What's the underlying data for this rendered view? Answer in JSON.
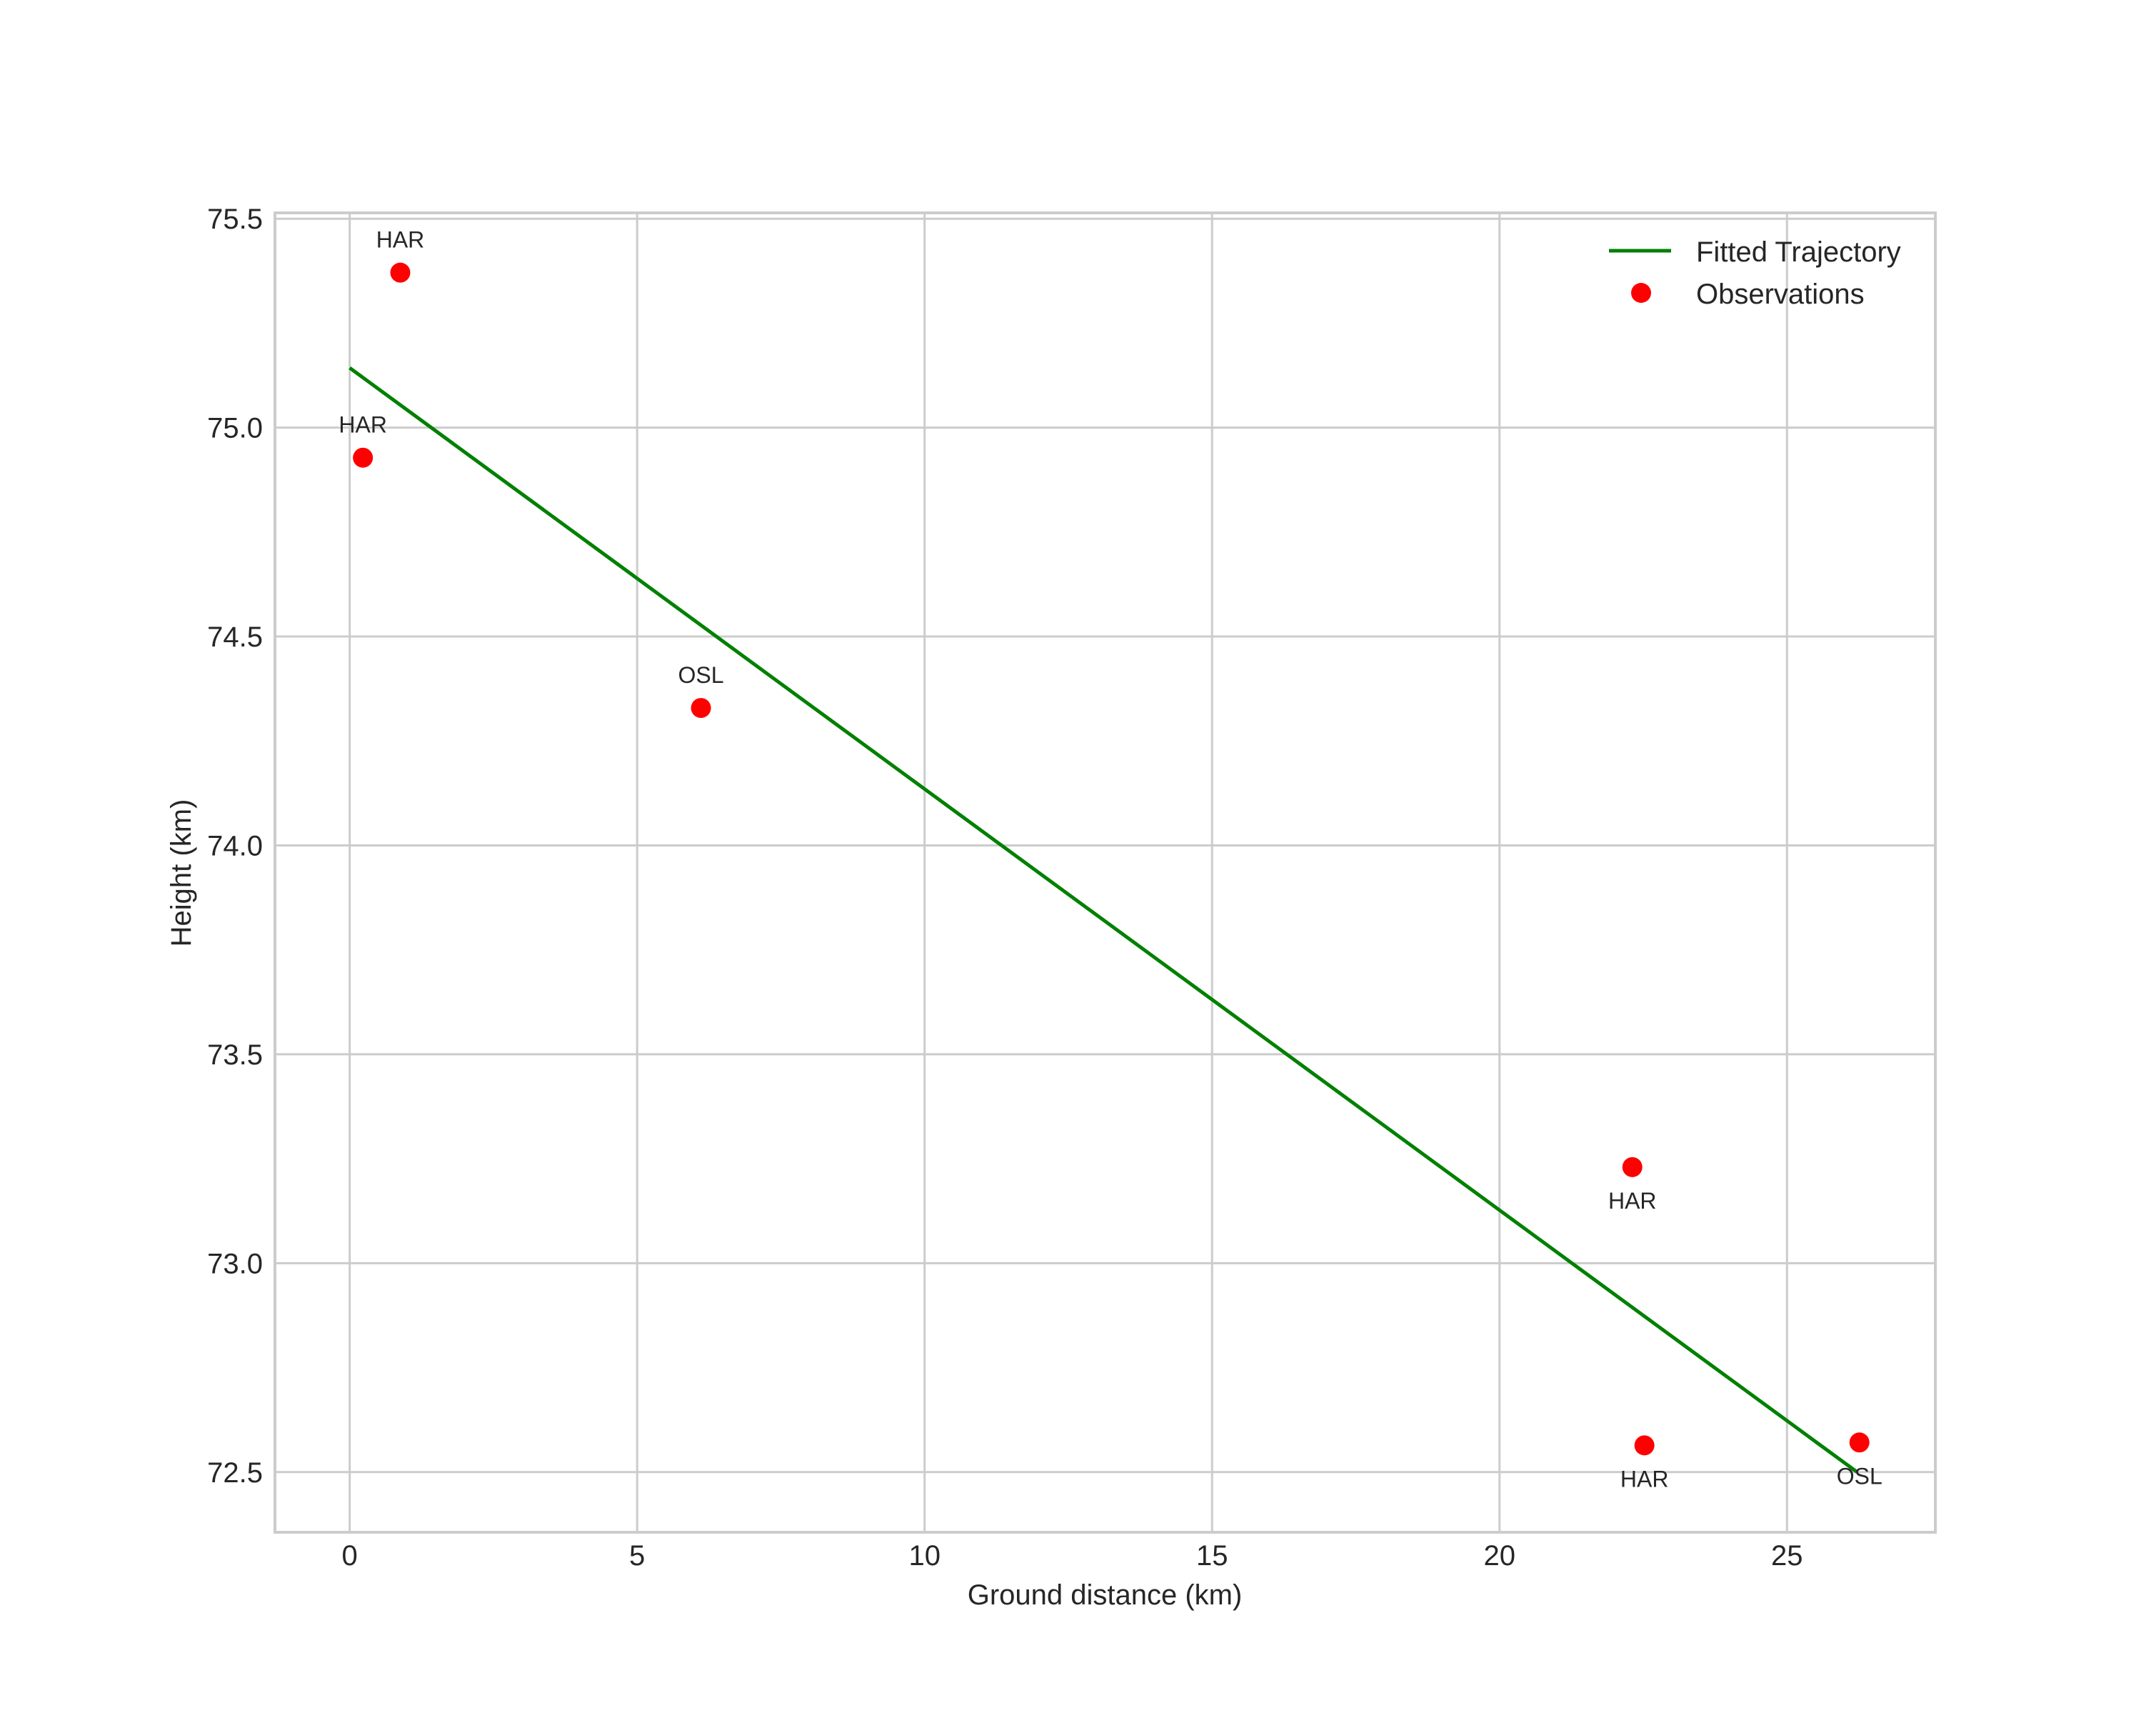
{
  "chart_data": {
    "type": "scatter",
    "title": "",
    "xlabel": "Ground distance (km)",
    "ylabel": "Height (km)",
    "xlim": [
      -1.3,
      27.58
    ],
    "ylim": [
      72.356,
      75.514
    ],
    "grid": true,
    "legend_position": "upper right",
    "xticks": [
      0,
      5,
      10,
      15,
      20,
      25
    ],
    "xtick_labels": [
      "0",
      "5",
      "10",
      "15",
      "20",
      "25"
    ],
    "yticks": [
      72.5,
      73.0,
      73.5,
      74.0,
      74.5,
      75.0,
      75.5
    ],
    "ytick_labels": [
      "72.5",
      "73.0",
      "73.5",
      "74.0",
      "74.5",
      "75.0",
      "75.5"
    ],
    "series": [
      {
        "name": "Fitted Trajectory",
        "type": "line",
        "color": "#008000",
        "x": [
          0.0,
          26.22
        ],
        "y": [
          75.143,
          72.5
        ]
      },
      {
        "name": "Observations",
        "type": "scatter",
        "color": "#ff0000",
        "points": [
          {
            "x": 0.88,
            "y": 75.371,
            "label": "HAR",
            "label_pos": "above"
          },
          {
            "x": 0.23,
            "y": 74.928,
            "label": "HAR",
            "label_pos": "above"
          },
          {
            "x": 6.11,
            "y": 74.329,
            "label": "OSL",
            "label_pos": "above"
          },
          {
            "x": 22.31,
            "y": 73.23,
            "label": "HAR",
            "label_pos": "below"
          },
          {
            "x": 22.52,
            "y": 72.564,
            "label": "HAR",
            "label_pos": "below"
          },
          {
            "x": 26.26,
            "y": 72.571,
            "label": "OSL",
            "label_pos": "below"
          }
        ]
      }
    ]
  },
  "legend": {
    "items": [
      {
        "label": "Fitted Trajectory",
        "kind": "line",
        "color": "#008000"
      },
      {
        "label": "Observations",
        "kind": "marker",
        "color": "#ff0000"
      }
    ]
  },
  "colors": {
    "grid": "#cccccc",
    "text": "#262626",
    "background": "#ffffff"
  }
}
